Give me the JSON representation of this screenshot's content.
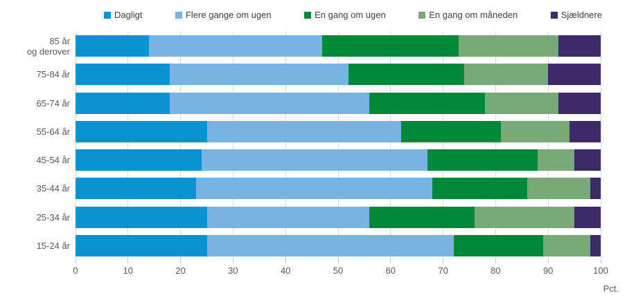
{
  "chart_data": {
    "type": "bar",
    "variant": "horizontal-stacked",
    "title": "",
    "xlabel": "Pct.",
    "xlim": [
      0,
      100
    ],
    "xticks": [
      0,
      10,
      20,
      30,
      40,
      50,
      60,
      70,
      80,
      90,
      100
    ],
    "grid": true,
    "legend_position": "top",
    "categories": [
      "85 år\nog derover",
      "75-84 år",
      "65-74 år",
      "55-64 år",
      "45-54 år",
      "35-44 år",
      "25-34 år",
      "15-24 år"
    ],
    "series": [
      {
        "name": "Dagligt",
        "color": "#0993d3",
        "values": [
          14,
          18,
          18,
          25,
          24,
          23,
          25,
          25
        ]
      },
      {
        "name": "Flere gange om ugen",
        "color": "#78b4e3",
        "values": [
          33,
          34,
          38,
          37,
          43,
          45,
          31,
          47
        ]
      },
      {
        "name": "En gang om ugen",
        "color": "#008a38",
        "values": [
          26,
          22,
          22,
          19,
          21,
          18,
          20,
          17
        ]
      },
      {
        "name": "En gang om måneden",
        "color": "#77aa74",
        "values": [
          19,
          16,
          14,
          13,
          7,
          12,
          19,
          9
        ]
      },
      {
        "name": "Sjældnere",
        "color": "#3e2a68",
        "values": [
          8,
          10,
          8,
          6,
          5,
          2,
          5,
          2
        ]
      }
    ]
  },
  "style": {
    "gridline_color": "#d9d9d9",
    "tick_color": "#bfbfbf",
    "text_color": "#595959"
  }
}
